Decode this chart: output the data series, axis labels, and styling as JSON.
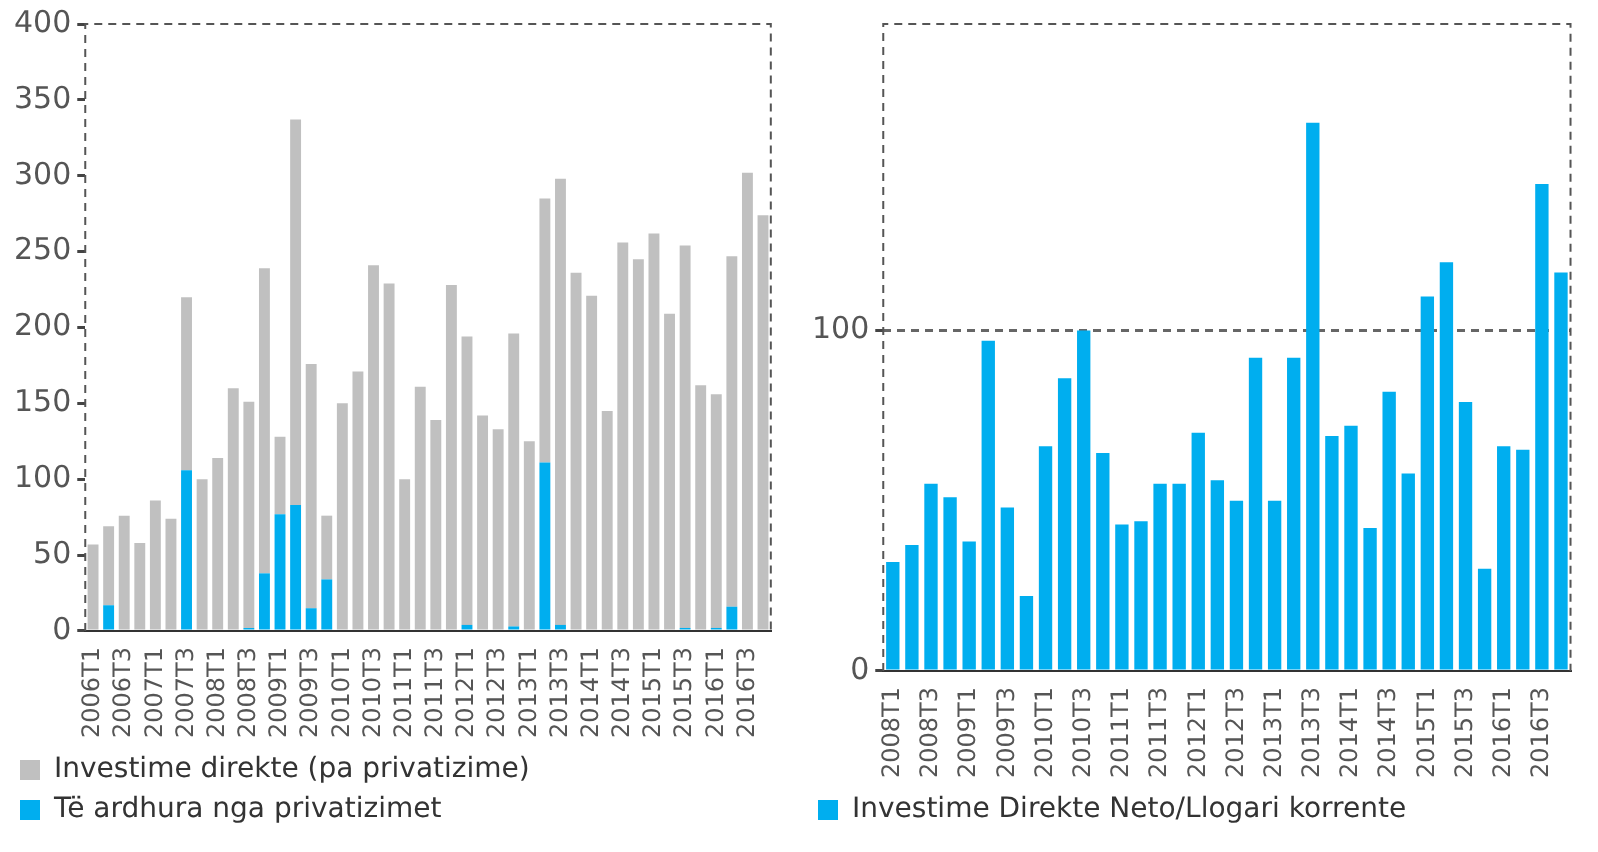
{
  "chart_data": [
    {
      "type": "bar",
      "stacked": true,
      "legend": "bottom",
      "grid": false,
      "categories": [
        "2006T1",
        null,
        "2006T3",
        null,
        "2007T1",
        null,
        "2007T3",
        null,
        "2008T1",
        null,
        "2008T3",
        null,
        "2009T1",
        null,
        "2009T3",
        null,
        "2010T1",
        null,
        "2010T3",
        null,
        "2011T1",
        null,
        "2011T3",
        null,
        "2012T1",
        null,
        "2012T3",
        null,
        "2013T1",
        null,
        "2013T3",
        null,
        "2014T1",
        null,
        "2014T3",
        null,
        "2015T1",
        null,
        "2015T3",
        null,
        "2016T1",
        null,
        "2016T3",
        null
      ],
      "ylim": [
        0,
        400
      ],
      "yticks": [
        0,
        50,
        100,
        150,
        200,
        250,
        300,
        350,
        400
      ],
      "series": [
        {
          "name": "Të ardhura nga privatizimet",
          "color": "#00aeef",
          "values": [
            0,
            17,
            0,
            0,
            0,
            0,
            106,
            0,
            0,
            1,
            2,
            38,
            77,
            83,
            15,
            34,
            0,
            0,
            0,
            0,
            0,
            0,
            0,
            0,
            4,
            0,
            0,
            3,
            1,
            111,
            4,
            1,
            0,
            0,
            0,
            0,
            0,
            1,
            2,
            1,
            2,
            16,
            0,
            0
          ]
        },
        {
          "name": "Investime direkte (pa privatizime)",
          "color": "#c0c0c0",
          "values": [
            57,
            52,
            76,
            58,
            86,
            74,
            114,
            100,
            114,
            159,
            149,
            201,
            51,
            254,
            161,
            42,
            150,
            171,
            241,
            229,
            100,
            161,
            139,
            228,
            190,
            142,
            133,
            193,
            124,
            174,
            294,
            235,
            221,
            145,
            256,
            245,
            262,
            208,
            252,
            161,
            154,
            231,
            302,
            274
          ]
        }
      ]
    },
    {
      "type": "bar",
      "legend": "bottom",
      "grid": "y",
      "categories": [
        "2008T1",
        null,
        "2008T3",
        null,
        "2009T1",
        null,
        "2009T3",
        null,
        "2010T1",
        null,
        "2010T3",
        null,
        "2011T1",
        null,
        "2011T3",
        null,
        "2012T1",
        null,
        "2012T3",
        null,
        "2013T1",
        null,
        "2013T3",
        null,
        "2014T1",
        null,
        "2014T3",
        null,
        "2015T1",
        null,
        "2015T3",
        null,
        "2016T1",
        null,
        "2016T3",
        null
      ],
      "ylim": [
        0,
        190
      ],
      "yticks": [
        0,
        100
      ],
      "series": [
        {
          "name": "Investime Direkte Neto/Llogari korrente",
          "color": "#00aeef",
          "values": [
            32,
            37,
            55,
            51,
            38,
            97,
            48,
            22,
            66,
            86,
            100,
            64,
            43,
            44,
            55,
            55,
            70,
            56,
            50,
            92,
            50,
            92,
            161,
            69,
            72,
            42,
            82,
            58,
            110,
            120,
            79,
            30,
            66,
            65,
            143,
            117
          ]
        }
      ]
    }
  ]
}
